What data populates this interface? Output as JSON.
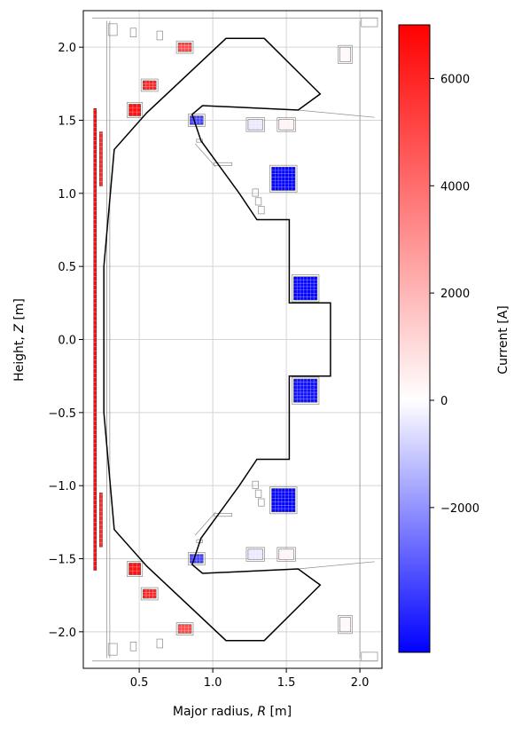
{
  "chart_data": {
    "type": "heatmap",
    "title": "",
    "xlabel_prefix": "Major radius, ",
    "xlabel_var": "R",
    "xlabel_suffix": " [m]",
    "ylabel_prefix": "Height, ",
    "ylabel_var": "Z",
    "ylabel_suffix": " [m]",
    "xlim": [
      0.12,
      2.15
    ],
    "ylim": [
      -2.25,
      2.25
    ],
    "x_ticks": [
      0.5,
      1.0,
      1.5,
      2.0
    ],
    "x_tick_labels": [
      "0.5",
      "1.0",
      "1.5",
      "2.0"
    ],
    "y_ticks": [
      2.0,
      1.5,
      1.0,
      0.5,
      0.0,
      -0.5,
      -1.0,
      -1.5,
      -2.0
    ],
    "y_tick_labels": [
      "2.0",
      "1.5",
      "1.0",
      "0.5",
      "0.0",
      "−0.5",
      "−1.0",
      "−1.5",
      "−2.0"
    ],
    "grid": true,
    "colorbar": {
      "label": "Current [A]",
      "range": [
        -4700,
        7000
      ],
      "ticks": [
        6000,
        4000,
        2000,
        0,
        -2000
      ],
      "tick_labels": [
        "6000",
        "4000",
        "2000",
        "0",
        "−2000"
      ],
      "colormap": [
        "#0000ff",
        "#ffffff",
        "#ff0000"
      ]
    },
    "wall_outline": [
      [
        0.26,
        0.5
      ],
      [
        0.33,
        1.3
      ],
      [
        0.55,
        1.55
      ],
      [
        1.09,
        2.06
      ],
      [
        1.35,
        2.06
      ],
      [
        1.73,
        1.68
      ],
      [
        1.58,
        1.57
      ],
      [
        0.93,
        1.6
      ],
      [
        0.86,
        1.54
      ],
      [
        0.92,
        1.36
      ],
      [
        1.18,
        1.0
      ],
      [
        1.3,
        0.82
      ],
      [
        1.52,
        0.82
      ],
      [
        1.52,
        0.25
      ],
      [
        1.8,
        0.25
      ],
      [
        1.8,
        -0.25
      ],
      [
        1.52,
        -0.25
      ],
      [
        1.52,
        -0.82
      ],
      [
        1.3,
        -0.82
      ],
      [
        1.18,
        -1.0
      ],
      [
        0.92,
        -1.36
      ],
      [
        0.86,
        -1.54
      ],
      [
        0.93,
        -1.6
      ],
      [
        1.58,
        -1.57
      ],
      [
        1.73,
        -1.68
      ],
      [
        1.35,
        -2.06
      ],
      [
        1.09,
        -2.06
      ],
      [
        0.55,
        -1.55
      ],
      [
        0.33,
        -1.3
      ],
      [
        0.26,
        -0.5
      ]
    ],
    "coils": [
      {
        "r": 0.47,
        "z": 1.57,
        "w": 0.08,
        "h": 0.08,
        "current": 6500
      },
      {
        "r": 0.47,
        "z": -1.57,
        "w": 0.08,
        "h": 0.08,
        "current": 6500
      },
      {
        "r": 0.57,
        "z": 1.74,
        "w": 0.09,
        "h": 0.06,
        "current": 6000
      },
      {
        "r": 0.57,
        "z": -1.74,
        "w": 0.09,
        "h": 0.06,
        "current": 6000
      },
      {
        "r": 0.81,
        "z": 2.0,
        "w": 0.09,
        "h": 0.06,
        "current": 5000
      },
      {
        "r": 0.81,
        "z": -1.98,
        "w": 0.09,
        "h": 0.06,
        "current": 5000
      },
      {
        "r": 0.89,
        "z": 1.5,
        "w": 0.09,
        "h": 0.06,
        "current": -3500
      },
      {
        "r": 0.89,
        "z": -1.5,
        "w": 0.09,
        "h": 0.06,
        "current": -3500
      },
      {
        "r": 1.29,
        "z": 1.47,
        "w": 0.1,
        "h": 0.07,
        "current": -400
      },
      {
        "r": 1.29,
        "z": -1.47,
        "w": 0.1,
        "h": 0.07,
        "current": -400
      },
      {
        "r": 1.5,
        "z": 1.47,
        "w": 0.1,
        "h": 0.07,
        "current": 300
      },
      {
        "r": 1.5,
        "z": -1.47,
        "w": 0.1,
        "h": 0.07,
        "current": 300
      },
      {
        "r": 1.48,
        "z": 1.1,
        "w": 0.16,
        "h": 0.16,
        "current": -4600
      },
      {
        "r": 1.48,
        "z": -1.1,
        "w": 0.16,
        "h": 0.16,
        "current": -4600
      },
      {
        "r": 1.63,
        "z": 0.35,
        "w": 0.16,
        "h": 0.16,
        "current": -4600
      },
      {
        "r": 1.63,
        "z": -0.35,
        "w": 0.16,
        "h": 0.16,
        "current": -4400
      },
      {
        "r": 1.9,
        "z": 1.95,
        "w": 0.07,
        "h": 0.1,
        "current": 200
      },
      {
        "r": 1.9,
        "z": -1.95,
        "w": 0.07,
        "h": 0.1,
        "current": 200
      }
    ],
    "central_solenoid": {
      "r": 0.2,
      "z_min": -1.58,
      "z_max": 1.58,
      "current": 6600
    },
    "outer_solenoid": {
      "r": 0.24,
      "segments": [
        [
          1.05,
          1.42
        ],
        [
          -1.42,
          -1.05
        ]
      ],
      "current": 5800
    }
  }
}
